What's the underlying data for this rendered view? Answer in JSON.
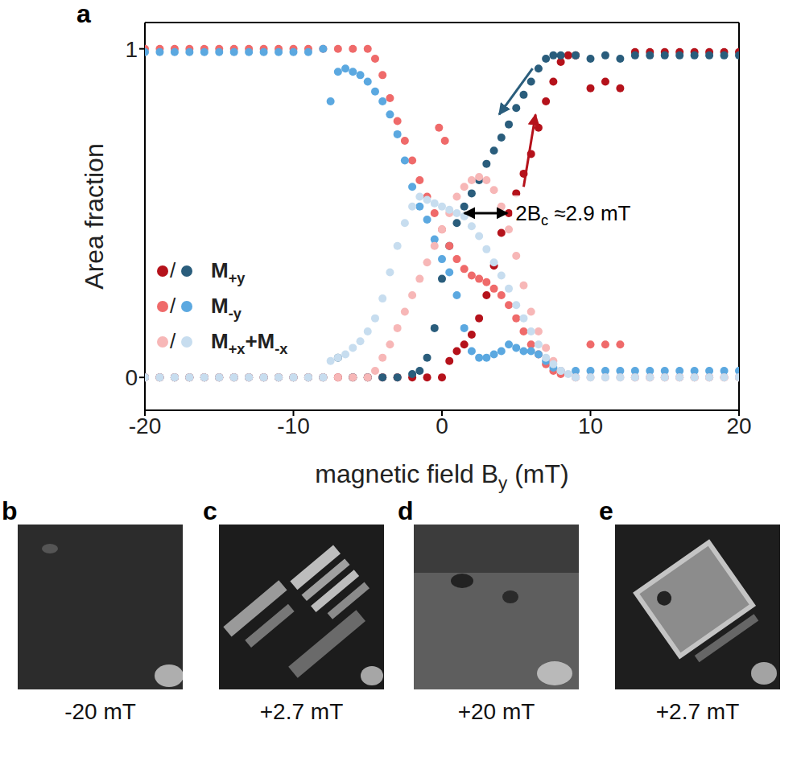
{
  "chart_data": {
    "type": "scatter",
    "panel": "a",
    "x_label": [
      {
        "text": "magnetic field B"
      },
      {
        "text": "y",
        "sub": true
      },
      {
        "text": " (mT)"
      }
    ],
    "y_label": "Area fraction",
    "xlim": [
      -20,
      20
    ],
    "xticks": [
      -20,
      -10,
      0,
      10,
      20
    ],
    "ylim": [
      -0.1,
      1.08
    ],
    "yticks": [
      0,
      1
    ],
    "legend": "lower left",
    "legend_separator": "/",
    "series": [
      {
        "name": "M+y",
        "color": "#b5121b",
        "x": [
          -20,
          -19,
          -18,
          -17,
          -16,
          -15,
          -14,
          -13,
          -12,
          -11,
          -10,
          -9,
          -8,
          -7,
          -6,
          -5,
          -4,
          -3,
          -2,
          -1,
          0,
          0.5,
          1,
          1.5,
          2,
          2.5,
          3,
          3.5,
          4,
          4.5,
          5,
          5.5,
          6,
          6.5,
          7,
          7.5,
          8,
          8.5,
          9,
          10,
          11,
          12,
          13,
          14,
          15,
          16,
          17,
          18,
          19,
          20
        ],
        "values": [
          0,
          0,
          0,
          0,
          0,
          0,
          0,
          0,
          0,
          0,
          0,
          0,
          0,
          0,
          0,
          0,
          0,
          0,
          0,
          0,
          0,
          0.05,
          0.08,
          0.1,
          0.13,
          0.18,
          0.25,
          0.34,
          0.44,
          0.5,
          0.56,
          0.62,
          0.68,
          0.76,
          0.84,
          0.9,
          0.96,
          0.98,
          0.98,
          0.88,
          0.9,
          0.88,
          0.99,
          0.99,
          0.99,
          0.99,
          0.99,
          0.99,
          0.99,
          0.99
        ]
      },
      {
        "name": "M+y",
        "color": "#2a5d7c",
        "x": [
          20,
          19,
          18,
          17,
          16,
          15,
          14,
          13,
          12,
          11,
          10,
          9,
          8,
          7.5,
          7,
          6.5,
          6,
          5.5,
          5,
          4.5,
          4,
          3.5,
          3,
          2.5,
          2,
          1.5,
          1,
          0.5,
          0,
          -0.5,
          -1,
          -1.5,
          -2,
          -3,
          -4,
          -5,
          -6,
          -7,
          -8,
          -9,
          -10,
          -11,
          -12,
          -13,
          -14,
          -15,
          -16,
          -17,
          -18,
          -19,
          -20
        ],
        "values": [
          0.98,
          0.98,
          0.98,
          0.98,
          0.98,
          0.98,
          0.98,
          0.98,
          0.97,
          0.98,
          0.97,
          0.98,
          0.98,
          0.98,
          0.97,
          0.94,
          0.9,
          0.86,
          0.82,
          0.77,
          0.73,
          0.69,
          0.65,
          0.6,
          0.56,
          0.52,
          0.47,
          0.4,
          0.3,
          0.15,
          0.06,
          0.02,
          0.01,
          0,
          0,
          0,
          0,
          0.06,
          0,
          0,
          0,
          0,
          0,
          0,
          0,
          0,
          0,
          0,
          0,
          0,
          0
        ]
      },
      {
        "name": "M-y",
        "color": "#ef6a6a",
        "x": [
          -20,
          -19,
          -18,
          -17,
          -16,
          -15,
          -14,
          -13,
          -12,
          -11,
          -10,
          -9,
          -8,
          -7,
          -6,
          -5,
          -4.5,
          -4,
          -3.5,
          -3,
          -2.5,
          -2,
          -1.5,
          -1,
          -0.5,
          -0.2,
          0,
          0.2,
          0.5,
          1,
          1.5,
          2,
          2.5,
          3,
          3.5,
          4,
          4.5,
          5,
          5.5,
          6,
          6.5,
          7,
          7.5,
          8,
          9,
          10,
          11,
          12,
          13,
          14,
          15,
          16,
          17,
          18,
          19,
          20
        ],
        "values": [
          1,
          1,
          1,
          1,
          1,
          1,
          1,
          1,
          1,
          1,
          1,
          1,
          1,
          1,
          1,
          1,
          0.97,
          0.92,
          0.85,
          0.78,
          0.72,
          0.66,
          0.6,
          0.55,
          0.5,
          0.76,
          0.45,
          0.72,
          0.4,
          0.36,
          0.33,
          0.31,
          0.3,
          0.29,
          0.27,
          0.25,
          0.22,
          0.18,
          0.14,
          0.1,
          0.07,
          0.04,
          0.02,
          0.01,
          0,
          0.1,
          0.1,
          0.1,
          0,
          0,
          0,
          0,
          0,
          0,
          0,
          0
        ]
      },
      {
        "name": "M-y",
        "color": "#5ba8e0",
        "x": [
          20,
          19,
          18,
          17,
          16,
          15,
          14,
          13,
          12,
          11,
          10,
          9,
          8,
          7.5,
          7,
          6.5,
          6,
          5.5,
          5,
          4.5,
          4,
          3.5,
          3,
          2.5,
          2,
          1.5,
          1,
          0.5,
          0,
          -0.5,
          -1,
          -1.5,
          -2,
          -2.5,
          -3,
          -3.5,
          -4,
          -4.5,
          -5,
          -5.5,
          -6,
          -6.5,
          -7,
          -7.5,
          -8,
          -9,
          -10,
          -11,
          -12,
          -13,
          -14,
          -15,
          -16,
          -17,
          -18,
          -19,
          -20
        ],
        "values": [
          0.02,
          0.02,
          0.02,
          0.02,
          0.02,
          0.02,
          0.02,
          0.02,
          0.02,
          0.02,
          0.02,
          0.02,
          0.02,
          0.03,
          0.05,
          0.07,
          0.08,
          0.08,
          0.09,
          0.1,
          0.08,
          0.07,
          0.06,
          0.06,
          0.08,
          0.15,
          0.25,
          0.32,
          0.36,
          0.42,
          0.48,
          0.52,
          0.58,
          0.66,
          0.74,
          0.8,
          0.84,
          0.87,
          0.9,
          0.92,
          0.93,
          0.94,
          0.93,
          0.84,
          1,
          0.99,
          0.99,
          0.99,
          0.99,
          0.99,
          0.99,
          0.99,
          0.99,
          0.99,
          0.99,
          0.99,
          0.99
        ]
      },
      {
        "name": "M+x+M-x",
        "color": "#f7b7b7",
        "x": [
          -20,
          -19,
          -18,
          -17,
          -16,
          -15,
          -14,
          -13,
          -12,
          -11,
          -10,
          -9,
          -8,
          -7,
          -6,
          -5,
          -4.5,
          -4,
          -3.5,
          -3,
          -2.5,
          -2,
          -1.5,
          -1,
          -0.5,
          0,
          0.5,
          1,
          1.5,
          2,
          2.5,
          3,
          3.5,
          4,
          4.5,
          5,
          5.5,
          6,
          6.5,
          7,
          7.5,
          8,
          9,
          10,
          11,
          12,
          13,
          14,
          15,
          16,
          17,
          18,
          19,
          20
        ],
        "values": [
          0,
          0,
          0,
          0,
          0,
          0,
          0,
          0,
          0,
          0,
          0,
          0,
          0,
          0,
          0,
          0,
          0.02,
          0.06,
          0.1,
          0.15,
          0.2,
          0.25,
          0.3,
          0.35,
          0.4,
          0.45,
          0.5,
          0.55,
          0.58,
          0.6,
          0.61,
          0.6,
          0.57,
          0.52,
          0.45,
          0.37,
          0.28,
          0.2,
          0.14,
          0.09,
          0.05,
          0.02,
          0,
          0,
          0,
          0,
          0,
          0,
          0,
          0,
          0,
          0,
          0,
          0
        ]
      },
      {
        "name": "M+x+M-x",
        "color": "#c7ddef",
        "x": [
          20,
          19,
          18,
          17,
          16,
          15,
          14,
          13,
          12,
          11,
          10,
          9,
          8.5,
          8,
          7.5,
          7,
          6.5,
          6,
          5.5,
          5,
          4.5,
          4,
          3.5,
          3,
          2.5,
          2,
          1.5,
          1,
          0.5,
          0,
          -0.5,
          -1,
          -1.5,
          -2,
          -2.5,
          -3,
          -3.5,
          -4,
          -4.5,
          -5,
          -5.5,
          -6,
          -6.5,
          -7,
          -7.5,
          -8,
          -9,
          -10,
          -11,
          -12,
          -13,
          -14,
          -15,
          -16,
          -17,
          -18,
          -19,
          -20
        ],
        "values": [
          0,
          0,
          0,
          0,
          0,
          0,
          0,
          0,
          0,
          0,
          0,
          0,
          0.01,
          0.02,
          0.04,
          0.06,
          0.1,
          0.14,
          0.18,
          0.22,
          0.27,
          0.31,
          0.35,
          0.39,
          0.43,
          0.46,
          0.49,
          0.5,
          0.51,
          0.52,
          0.53,
          0.54,
          0.55,
          0.52,
          0.47,
          0.4,
          0.32,
          0.24,
          0.18,
          0.14,
          0.11,
          0.09,
          0.07,
          0.06,
          0.05,
          0,
          0,
          0,
          0,
          0,
          0,
          0,
          0,
          0,
          0,
          0,
          0,
          0
        ]
      }
    ],
    "arrows": [
      {
        "x": [
          6.1,
          3.85
        ],
        "y": [
          0.94,
          0.8
        ],
        "color": "#2a5d7c"
      },
      {
        "x": [
          5.5,
          6.3
        ],
        "y": [
          0.58,
          0.8
        ],
        "color": "#b5121b"
      }
    ],
    "annotation": {
      "text": [
        {
          "text": "2B"
        },
        {
          "text": "c",
          "sub": true
        },
        {
          "text": " ≈2.9 mT"
        }
      ],
      "x": [
        1.5,
        4.4
      ],
      "y": 0.5,
      "color": "#000000"
    }
  },
  "images": [
    {
      "panel": "b",
      "caption": "-20 mT"
    },
    {
      "panel": "c",
      "caption": "+2.7 mT"
    },
    {
      "panel": "d",
      "caption": "+20 mT"
    },
    {
      "panel": "e",
      "caption": "+2.7 mT"
    }
  ]
}
